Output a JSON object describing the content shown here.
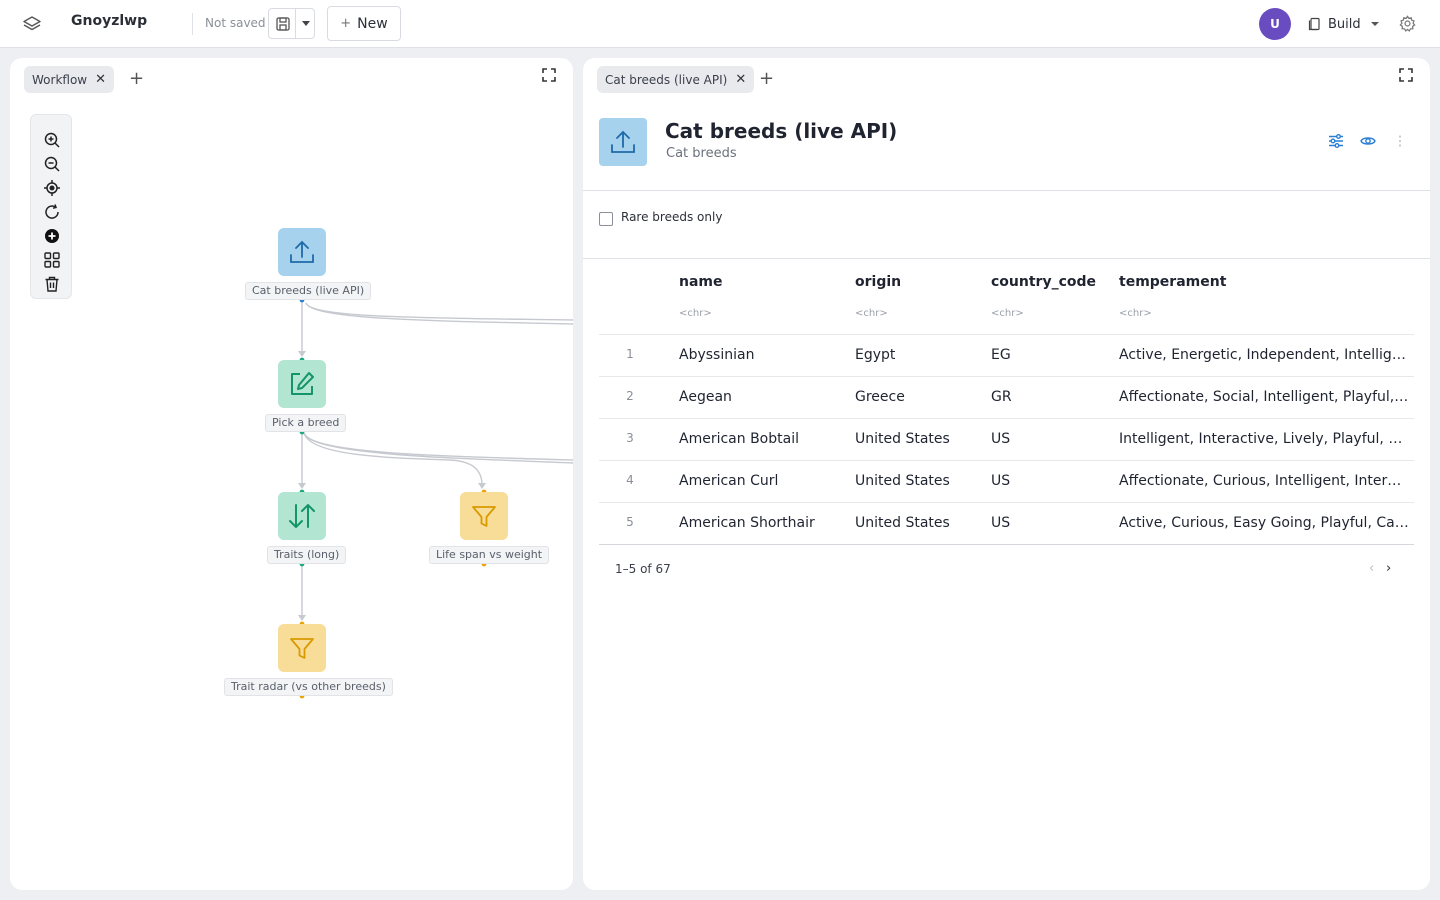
{
  "header": {
    "app_name": "Gnoyzlwp",
    "save_status": "Not saved",
    "new_label": "New",
    "avatar_initial": "U",
    "mode_label": "Build"
  },
  "left_panel": {
    "tabs": [
      {
        "label": "Workflow"
      }
    ],
    "nodes": [
      {
        "label": "Cat breeds (live API)",
        "kind": "upload-icon",
        "color": "#a6d2ee"
      },
      {
        "label": "Pick a breed",
        "kind": "edit-icon",
        "color": "#b3e6d2"
      },
      {
        "label": "Traits (long)",
        "kind": "sort-arrows-icon",
        "color": "#b3e6d2"
      },
      {
        "label": "Life span vs weight",
        "kind": "filter-icon",
        "color": "#f8dd98"
      },
      {
        "label": "Trait radar (vs other breeds)",
        "kind": "filter-icon",
        "color": "#f8dd98"
      }
    ],
    "toolbar_icons": [
      "zoom-in-icon",
      "zoom-out-icon",
      "locate-icon",
      "refresh-icon",
      "add-circle-icon",
      "grid-icon",
      "trash-icon"
    ]
  },
  "right_panel": {
    "tabs": [
      {
        "label": "Cat breeds (live API)"
      }
    ],
    "dataset": {
      "title": "Cat breeds (live API)",
      "subtitle": "Cat breeds"
    },
    "filter": {
      "label": "Rare breeds only",
      "checked": false
    },
    "table": {
      "columns": [
        {
          "name": "name",
          "type": "<chr>"
        },
        {
          "name": "origin",
          "type": "<chr>"
        },
        {
          "name": "country_code",
          "type": "<chr>"
        },
        {
          "name": "temperament",
          "type": "<chr>"
        }
      ],
      "rows": [
        {
          "num": "1",
          "name": "Abyssinian",
          "origin": "Egypt",
          "country_code": "EG",
          "temperament": "Active, Energetic, Independent, Intelligent,…"
        },
        {
          "num": "2",
          "name": "Aegean",
          "origin": "Greece",
          "country_code": "GR",
          "temperament": "Affectionate, Social, Intelligent, Playful, Act…"
        },
        {
          "num": "3",
          "name": "American Bobtail",
          "origin": "United States",
          "country_code": "US",
          "temperament": "Intelligent, Interactive, Lively, Playful, Sens…"
        },
        {
          "num": "4",
          "name": "American Curl",
          "origin": "United States",
          "country_code": "US",
          "temperament": "Affectionate, Curious, Intelligent, Interacti…"
        },
        {
          "num": "5",
          "name": "American Shorthair",
          "origin": "United States",
          "country_code": "US",
          "temperament": "Active, Curious, Easy Going, Playful, Calm"
        }
      ],
      "pagination": "1–5 of 67"
    }
  },
  "colors": {
    "accent": "#2a7fd4",
    "avatar": "#6a4cc1"
  }
}
